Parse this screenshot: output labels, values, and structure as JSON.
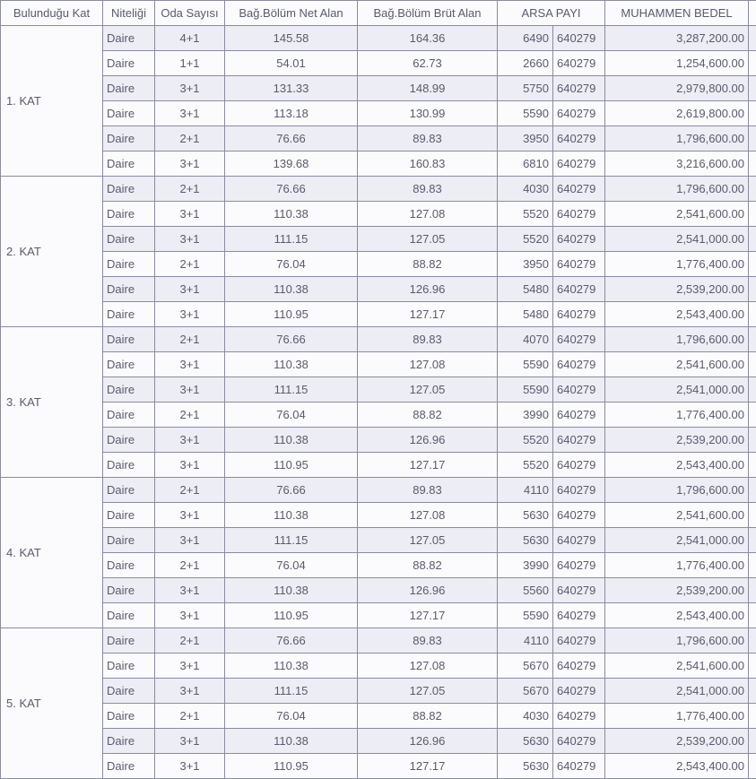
{
  "columns": [
    {
      "key": "floor",
      "label": "Bulunduğu Kat",
      "width": 114,
      "align": "center"
    },
    {
      "key": "type",
      "label": "Niteliği",
      "width": 58,
      "align": "left"
    },
    {
      "key": "rooms",
      "label": "Oda Sayısı",
      "width": 78,
      "align": "center"
    },
    {
      "key": "net",
      "label": "Bağ.Bölüm Net Alan",
      "width": 148,
      "align": "center"
    },
    {
      "key": "gross",
      "label": "Bağ.Bölüm Brüt Alan",
      "width": 156,
      "align": "center"
    },
    {
      "key": "share1",
      "label": "ARSA PAYI",
      "width": 62,
      "align": "right",
      "split": true
    },
    {
      "key": "share2",
      "label": "",
      "width": 58,
      "align": "left"
    },
    {
      "key": "value",
      "label": "MUHAMMEN BEDEL",
      "width": 160,
      "align": "right"
    },
    {
      "key": "extra",
      "label": "",
      "width": 9,
      "align": "left"
    }
  ],
  "arsa_payi_header": "ARSA PAYI",
  "groups": [
    {
      "floor": "1. KAT",
      "rows": [
        {
          "type": "Daire",
          "rooms": "4+1",
          "net": "145.58",
          "gross": "164.36",
          "share1": "6490",
          "share2": "640279",
          "value": "3,287,200.00"
        },
        {
          "type": "Daire",
          "rooms": "1+1",
          "net": "54.01",
          "gross": "62.73",
          "share1": "2660",
          "share2": "640279",
          "value": "1,254,600.00"
        },
        {
          "type": "Daire",
          "rooms": "3+1",
          "net": "131.33",
          "gross": "148.99",
          "share1": "5750",
          "share2": "640279",
          "value": "2,979,800.00"
        },
        {
          "type": "Daire",
          "rooms": "3+1",
          "net": "113.18",
          "gross": "130.99",
          "share1": "5590",
          "share2": "640279",
          "value": "2,619,800.00"
        },
        {
          "type": "Daire",
          "rooms": "2+1",
          "net": "76.66",
          "gross": "89.83",
          "share1": "3950",
          "share2": "640279",
          "value": "1,796,600.00"
        },
        {
          "type": "Daire",
          "rooms": "3+1",
          "net": "139.68",
          "gross": "160.83",
          "share1": "6810",
          "share2": "640279",
          "value": "3,216,600.00"
        }
      ]
    },
    {
      "floor": "2. KAT",
      "rows": [
        {
          "type": "Daire",
          "rooms": "2+1",
          "net": "76.66",
          "gross": "89.83",
          "share1": "4030",
          "share2": "640279",
          "value": "1,796,600.00"
        },
        {
          "type": "Daire",
          "rooms": "3+1",
          "net": "110.38",
          "gross": "127.08",
          "share1": "5520",
          "share2": "640279",
          "value": "2,541,600.00"
        },
        {
          "type": "Daire",
          "rooms": "3+1",
          "net": "111.15",
          "gross": "127.05",
          "share1": "5520",
          "share2": "640279",
          "value": "2,541,000.00"
        },
        {
          "type": "Daire",
          "rooms": "2+1",
          "net": "76.04",
          "gross": "88.82",
          "share1": "3950",
          "share2": "640279",
          "value": "1,776,400.00"
        },
        {
          "type": "Daire",
          "rooms": "3+1",
          "net": "110.38",
          "gross": "126.96",
          "share1": "5480",
          "share2": "640279",
          "value": "2,539,200.00"
        },
        {
          "type": "Daire",
          "rooms": "3+1",
          "net": "110.95",
          "gross": "127.17",
          "share1": "5480",
          "share2": "640279",
          "value": "2,543,400.00"
        }
      ]
    },
    {
      "floor": "3. KAT",
      "rows": [
        {
          "type": "Daire",
          "rooms": "2+1",
          "net": "76.66",
          "gross": "89.83",
          "share1": "4070",
          "share2": "640279",
          "value": "1,796,600.00"
        },
        {
          "type": "Daire",
          "rooms": "3+1",
          "net": "110.38",
          "gross": "127.08",
          "share1": "5590",
          "share2": "640279",
          "value": "2,541,600.00"
        },
        {
          "type": "Daire",
          "rooms": "3+1",
          "net": "111.15",
          "gross": "127.05",
          "share1": "5590",
          "share2": "640279",
          "value": "2,541,000.00"
        },
        {
          "type": "Daire",
          "rooms": "2+1",
          "net": "76.04",
          "gross": "88.82",
          "share1": "3990",
          "share2": "640279",
          "value": "1,776,400.00"
        },
        {
          "type": "Daire",
          "rooms": "3+1",
          "net": "110.38",
          "gross": "126.96",
          "share1": "5520",
          "share2": "640279",
          "value": "2,539,200.00"
        },
        {
          "type": "Daire",
          "rooms": "3+1",
          "net": "110.95",
          "gross": "127.17",
          "share1": "5520",
          "share2": "640279",
          "value": "2,543,400.00"
        }
      ]
    },
    {
      "floor": "4. KAT",
      "rows": [
        {
          "type": "Daire",
          "rooms": "2+1",
          "net": "76.66",
          "gross": "89.83",
          "share1": "4110",
          "share2": "640279",
          "value": "1,796,600.00"
        },
        {
          "type": "Daire",
          "rooms": "3+1",
          "net": "110.38",
          "gross": "127.08",
          "share1": "5630",
          "share2": "640279",
          "value": "2,541,600.00"
        },
        {
          "type": "Daire",
          "rooms": "3+1",
          "net": "111.15",
          "gross": "127.05",
          "share1": "5630",
          "share2": "640279",
          "value": "2,541,000.00"
        },
        {
          "type": "Daire",
          "rooms": "2+1",
          "net": "76.04",
          "gross": "88.82",
          "share1": "3990",
          "share2": "640279",
          "value": "1,776,400.00"
        },
        {
          "type": "Daire",
          "rooms": "3+1",
          "net": "110.38",
          "gross": "126.96",
          "share1": "5560",
          "share2": "640279",
          "value": "2,539,200.00"
        },
        {
          "type": "Daire",
          "rooms": "3+1",
          "net": "110.95",
          "gross": "127.17",
          "share1": "5590",
          "share2": "640279",
          "value": "2,543,400.00"
        }
      ]
    },
    {
      "floor": "5. KAT",
      "rows": [
        {
          "type": "Daire",
          "rooms": "2+1",
          "net": "76.66",
          "gross": "89.83",
          "share1": "4110",
          "share2": "640279",
          "value": "1,796,600.00"
        },
        {
          "type": "Daire",
          "rooms": "3+1",
          "net": "110.38",
          "gross": "127.08",
          "share1": "5670",
          "share2": "640279",
          "value": "2,541,600.00"
        },
        {
          "type": "Daire",
          "rooms": "3+1",
          "net": "111.15",
          "gross": "127.05",
          "share1": "5670",
          "share2": "640279",
          "value": "2,541,000.00"
        },
        {
          "type": "Daire",
          "rooms": "2+1",
          "net": "76.04",
          "gross": "88.82",
          "share1": "4030",
          "share2": "640279",
          "value": "1,776,400.00"
        },
        {
          "type": "Daire",
          "rooms": "3+1",
          "net": "110.38",
          "gross": "126.96",
          "share1": "5630",
          "share2": "640279",
          "value": "2,539,200.00"
        },
        {
          "type": "Daire",
          "rooms": "3+1",
          "net": "110.95",
          "gross": "127.17",
          "share1": "5630",
          "share2": "640279",
          "value": "2,543,400.00"
        }
      ]
    }
  ]
}
